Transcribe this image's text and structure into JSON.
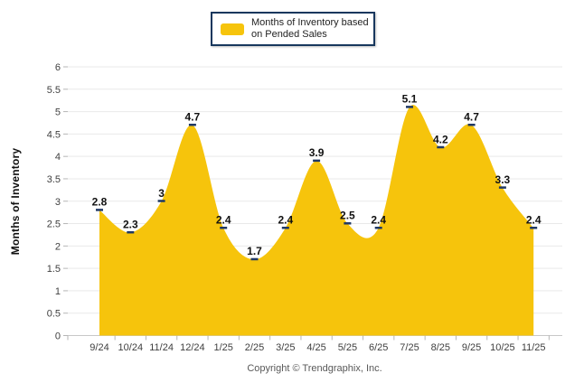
{
  "legend": {
    "line1": "Months of Inventory based",
    "line2": "on Pended Sales"
  },
  "footer": {
    "text": "Copyright © Trendgraphix, Inc."
  },
  "colors": {
    "area_fill": "#f6c40c",
    "point_marker": "#1f3864",
    "gridline": "#e9e9e9",
    "axis_line": "#c8c8c8",
    "tick_mark": "#b6b6b6",
    "tick_text": "#3f3f3f",
    "data_label_text": "#111111",
    "legend_border": "#17375d",
    "footer_text": "#595959"
  },
  "chart_data": {
    "type": "area",
    "title": "",
    "xlabel": "",
    "ylabel": "Months of Inventory",
    "legend_label": "Months of Inventory based on Pended Sales",
    "legend_position": "top-center",
    "grid": true,
    "ylim": [
      0,
      6
    ],
    "ytick_step": 0.5,
    "categories": [
      "9/24",
      "10/24",
      "11/24",
      "12/24",
      "1/25",
      "2/25",
      "3/25",
      "4/25",
      "5/25",
      "6/25",
      "7/25",
      "8/25",
      "9/25",
      "10/25",
      "11/25"
    ],
    "values": [
      2.8,
      2.3,
      3,
      4.7,
      2.4,
      1.7,
      2.4,
      3.9,
      2.5,
      2.4,
      5.1,
      4.2,
      4.7,
      3.3,
      2.4
    ]
  }
}
